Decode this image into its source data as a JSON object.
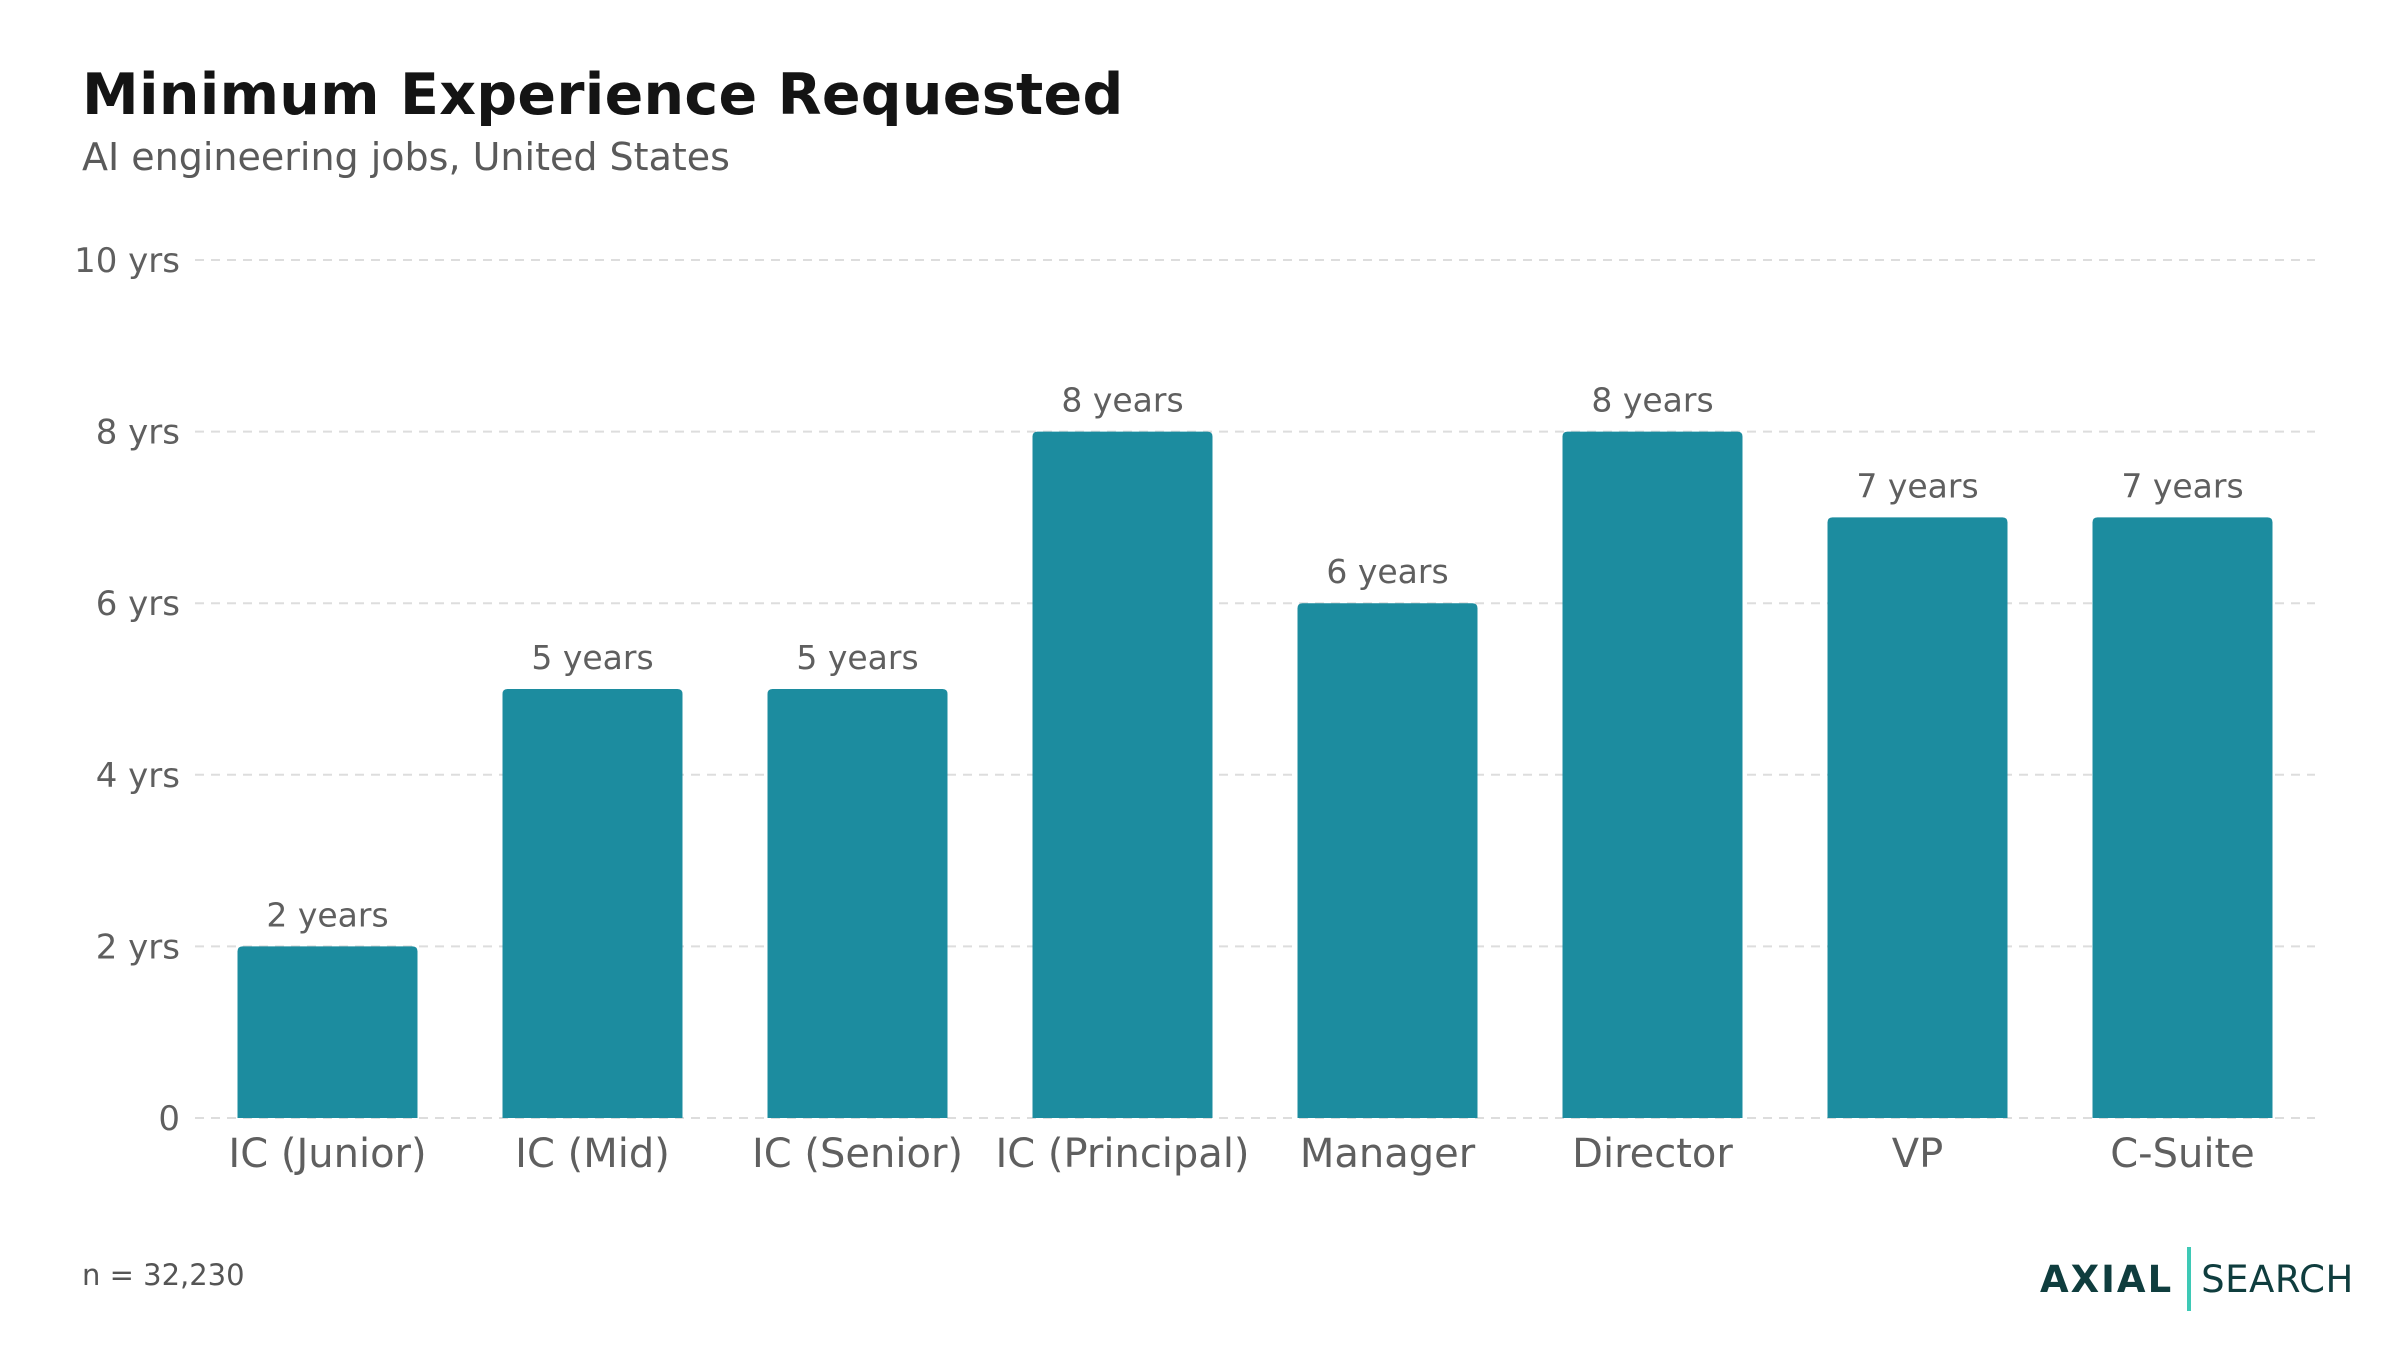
{
  "header": {
    "title": "Minimum Experience Requested",
    "subtitle": "AI engineering jobs, United States"
  },
  "footer": {
    "note": "n = 32,230",
    "logo": {
      "left": "AXIAL",
      "right": "SEARCH"
    }
  },
  "colors": {
    "bar": "#1c8c9f",
    "grid": "#dddddd",
    "text": "#5f5f5f",
    "logo": "#0f3d3e",
    "logo_accent": "#3ec9b6"
  },
  "chart_data": {
    "type": "bar",
    "categories": [
      "IC (Junior)",
      "IC (Mid)",
      "IC (Senior)",
      "IC (Principal)",
      "Manager",
      "Director",
      "VP",
      "C-Suite"
    ],
    "values": [
      2,
      5,
      5,
      8,
      6,
      8,
      7,
      7
    ],
    "data_labels": [
      "2 years",
      "5 years",
      "5 years",
      "8 years",
      "6 years",
      "8 years",
      "7 years",
      "7 years"
    ],
    "title": "Minimum Experience Requested",
    "subtitle": "AI engineering jobs, United States",
    "xlabel": "",
    "ylabel": "",
    "ylim": [
      0,
      10
    ],
    "yticks": [
      0,
      2,
      4,
      6,
      8,
      10
    ],
    "ytick_labels": [
      "0",
      "2 yrs",
      "4 yrs",
      "6 yrs",
      "8 yrs",
      "10 yrs"
    ],
    "grid": true,
    "legend": "none"
  }
}
